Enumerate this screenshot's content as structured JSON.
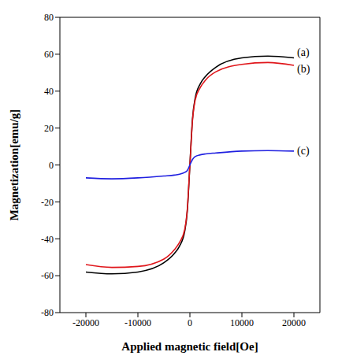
{
  "chart_data": {
    "type": "line",
    "xlabel": "Applied magnetic field[Oe]",
    "ylabel": "Magnetization[emu/g]",
    "x": [
      -20000,
      -15000,
      -10000,
      -5000,
      -3000,
      -2000,
      -1000,
      -500,
      0,
      500,
      1000,
      2000,
      3000,
      5000,
      10000,
      15000,
      20000
    ],
    "xlim": [
      -25000,
      25000
    ],
    "xticks": [
      -20000,
      -10000,
      0,
      10000,
      20000
    ],
    "ylim": [
      -80,
      80
    ],
    "yticks": [
      -80,
      -60,
      -40,
      -20,
      0,
      20,
      40,
      60,
      80
    ],
    "grid": false,
    "series": [
      {
        "name": "(a)",
        "color": "#000000",
        "values": [
          -58,
          -59,
          -58,
          -53,
          -48,
          -44,
          -36,
          -25,
          0,
          25,
          36,
          44,
          48,
          53,
          58,
          59,
          58
        ]
      },
      {
        "name": "(b)",
        "color": "#e0161b",
        "values": [
          -54,
          -55.5,
          -55,
          -51,
          -46,
          -42,
          -35,
          -24,
          0,
          24,
          35,
          42,
          46,
          50.5,
          54.5,
          55.5,
          54
        ]
      },
      {
        "name": "(c)",
        "color": "#2020e0",
        "values": [
          -7,
          -7.5,
          -7,
          -6,
          -5.5,
          -5,
          -4,
          -3,
          0,
          3,
          4.5,
          5.5,
          6,
          6.5,
          7.5,
          7.8,
          7.5
        ]
      }
    ]
  }
}
